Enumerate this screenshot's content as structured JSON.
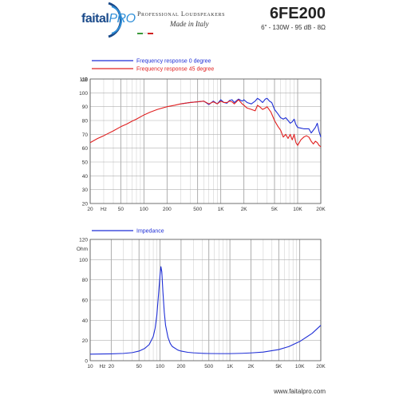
{
  "header": {
    "logo_faital": "faital",
    "logo_pro": "PRO",
    "tagline": "Professional Loudspeakers",
    "made_in": "Made in Italy",
    "model": "6FE200",
    "spec": "6\" - 130W - 95 dB - 8Ω",
    "colors": {
      "logo_dark": "#1a4a8a",
      "logo_light": "#2f8fd8",
      "flag_green": "#3a9a3a",
      "flag_white": "#ffffff",
      "flag_red": "#d02020"
    }
  },
  "footer": {
    "url": "www.faitalpro.com"
  },
  "chart_data": [
    {
      "type": "line",
      "xscale": "log",
      "xlim": [
        20,
        20000
      ],
      "ylim": [
        20,
        110
      ],
      "ylabel": "dB",
      "yticks": [
        20,
        30,
        40,
        50,
        60,
        70,
        80,
        90,
        100,
        110
      ],
      "xtick_labels": [
        {
          "v": 20,
          "t": "20"
        },
        {
          "v": 30,
          "t": "Hz"
        },
        {
          "v": 50,
          "t": "50"
        },
        {
          "v": 100,
          "t": "100"
        },
        {
          "v": 200,
          "t": "200"
        },
        {
          "v": 500,
          "t": "500"
        },
        {
          "v": 1000,
          "t": "1K"
        },
        {
          "v": 2000,
          "t": "2K"
        },
        {
          "v": 5000,
          "t": "5K"
        },
        {
          "v": 10000,
          "t": "10K"
        },
        {
          "v": 20000,
          "t": "20K"
        }
      ],
      "grid": true,
      "legend": "top-left",
      "series": [
        {
          "name": "Frequency response 0 degree",
          "color": "#1f2fd6",
          "x": [
            300,
            400,
            500,
            600,
            700,
            800,
            900,
            1000,
            1100,
            1200,
            1300,
            1400,
            1500,
            1700,
            1900,
            2000,
            2200,
            2500,
            2800,
            3000,
            3200,
            3500,
            3800,
            4000,
            4300,
            4600,
            5000,
            5500,
            6000,
            6500,
            7000,
            7500,
            8000,
            8500,
            9000,
            9500,
            10000,
            11000,
            12000,
            13000,
            14000,
            15000,
            16000,
            17000,
            18000,
            19000,
            20000
          ],
          "y": [
            92,
            93,
            93.5,
            94,
            91.5,
            94,
            92,
            95,
            93,
            92.5,
            94.5,
            95,
            93,
            95.5,
            94,
            95,
            93,
            92,
            94,
            96,
            95,
            93,
            95.5,
            96,
            94,
            93,
            88,
            85,
            82,
            81,
            82,
            80,
            78,
            79,
            81,
            77,
            75,
            74.5,
            74,
            74,
            74,
            71,
            73,
            75,
            78,
            72,
            68
          ]
        },
        {
          "name": "Frequency response 45 degree",
          "color": "#e02020",
          "x": [
            20,
            25,
            30,
            40,
            50,
            60,
            70,
            80,
            100,
            120,
            150,
            200,
            250,
            300,
            400,
            500,
            600,
            700,
            800,
            900,
            1000,
            1100,
            1200,
            1300,
            1400,
            1500,
            1700,
            1900,
            2000,
            2200,
            2500,
            2800,
            3000,
            3200,
            3500,
            3800,
            4000,
            4500,
            5000,
            5500,
            6000,
            6500,
            7000,
            7500,
            8000,
            8500,
            9000,
            9500,
            10000,
            11000,
            12000,
            13000,
            14000,
            15000,
            16000,
            17000,
            18000,
            19000,
            20000
          ],
          "y": [
            64,
            67,
            69,
            72.5,
            75.5,
            77.5,
            79.5,
            81,
            84,
            86,
            88,
            90,
            91,
            92,
            93,
            93.5,
            94,
            92,
            93.5,
            92,
            94,
            93,
            93,
            94,
            93.5,
            92,
            95,
            92,
            91,
            89,
            88,
            87,
            91,
            90,
            88,
            89,
            90,
            86,
            80,
            76,
            73,
            68,
            70,
            67,
            70,
            66,
            70,
            64,
            62,
            66,
            68,
            69,
            68,
            65,
            63,
            65,
            64,
            62,
            61
          ]
        }
      ]
    },
    {
      "type": "line",
      "xscale": "log",
      "xlim": [
        10,
        20000
      ],
      "ylim": [
        0,
        120
      ],
      "ylabel": "Ohm",
      "yticks": [
        0,
        20,
        40,
        60,
        80,
        100,
        120
      ],
      "xtick_labels": [
        {
          "v": 10,
          "t": "10"
        },
        {
          "v": 15,
          "t": "Hz"
        },
        {
          "v": 20,
          "t": "20"
        },
        {
          "v": 50,
          "t": "50"
        },
        {
          "v": 100,
          "t": "100"
        },
        {
          "v": 200,
          "t": "200"
        },
        {
          "v": 500,
          "t": "500"
        },
        {
          "v": 1000,
          "t": "1K"
        },
        {
          "v": 2000,
          "t": "2K"
        },
        {
          "v": 5000,
          "t": "5K"
        },
        {
          "v": 10000,
          "t": "10K"
        },
        {
          "v": 20000,
          "t": "20K"
        }
      ],
      "grid": true,
      "legend": "top-left",
      "series": [
        {
          "name": "Impedance",
          "color": "#1f2fd6",
          "x": [
            10,
            20,
            30,
            40,
            50,
            60,
            70,
            80,
            85,
            90,
            95,
            100,
            103,
            106,
            110,
            115,
            120,
            130,
            140,
            150,
            180,
            200,
            250,
            300,
            400,
            500,
            700,
            1000,
            1500,
            2000,
            3000,
            5000,
            7000,
            10000,
            15000,
            20000
          ],
          "y": [
            6.5,
            6.8,
            7.2,
            8,
            9.5,
            12,
            16,
            24,
            32,
            45,
            65,
            85,
            93,
            88,
            68,
            48,
            35,
            23,
            17,
            14,
            10.5,
            9.5,
            8.3,
            7.8,
            7.3,
            7.1,
            7,
            7,
            7.3,
            7.7,
            8.5,
            11,
            14,
            19,
            27,
            35
          ]
        }
      ]
    }
  ]
}
